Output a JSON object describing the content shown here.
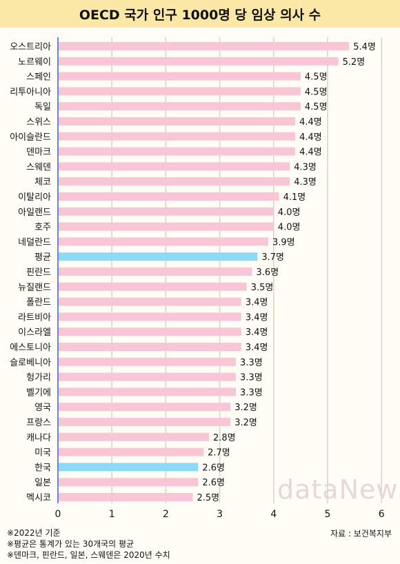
{
  "title": "OECD 국가 인구 1000명 당 임상 의사 수",
  "source": "자료 : 보건복지부",
  "footnotes": [
    "※2022년 기준",
    "※평균은 통계가 있는 30개국의 평균",
    "※덴마크, 핀란드, 일본, 스웨덴은 2020년 수치"
  ],
  "watermark": "dataNews",
  "colors": {
    "bar": "#f9c6d8",
    "highlight": "#8ed8f8",
    "grid": "#d9d2c7",
    "axis": "#3b5bdb",
    "title_bg": "#fbe7a6"
  },
  "chart_data": {
    "type": "bar",
    "orientation": "horizontal",
    "categories": [
      "오스트리아",
      "노르웨이",
      "스페인",
      "리투아니아",
      "독일",
      "스위스",
      "아이슬란드",
      "덴마크",
      "스웨덴",
      "체코",
      "이탈리아",
      "아일랜드",
      "호주",
      "네덜란드",
      "평균",
      "핀란드",
      "뉴질랜드",
      "폴란드",
      "라트비아",
      "이스라엘",
      "에스토니아",
      "슬로베니아",
      "헝가리",
      "벨기에",
      "영국",
      "프랑스",
      "캐나다",
      "미국",
      "한국",
      "일본",
      "멕시코"
    ],
    "values": [
      5.4,
      5.2,
      4.5,
      4.5,
      4.5,
      4.4,
      4.4,
      4.4,
      4.3,
      4.3,
      4.1,
      4.0,
      4.0,
      3.9,
      3.7,
      3.6,
      3.5,
      3.4,
      3.4,
      3.4,
      3.4,
      3.3,
      3.3,
      3.3,
      3.2,
      3.2,
      2.8,
      2.7,
      2.6,
      2.6,
      2.5
    ],
    "labels": [
      "5.4명",
      "5.2명",
      "4.5명",
      "4.5명",
      "4.5명",
      "4.4명",
      "4.4명",
      "4.4명",
      "4.3명",
      "4.3명",
      "4.1명",
      "4.0명",
      "4.0명",
      "3.9명",
      "3.7명",
      "3.6명",
      "3.5명",
      "3.4명",
      "3.4명",
      "3.4명",
      "3.4명",
      "3.3명",
      "3.3명",
      "3.3명",
      "3.2명",
      "3.2명",
      "2.8명",
      "2.7명",
      "2.6명",
      "2.6명",
      "2.5명"
    ],
    "highlighted": [
      "평균",
      "한국"
    ],
    "xlim": [
      0,
      6
    ],
    "xticks": [
      "0",
      "1",
      "2",
      "3",
      "4",
      "5",
      "6"
    ],
    "grid": true
  }
}
